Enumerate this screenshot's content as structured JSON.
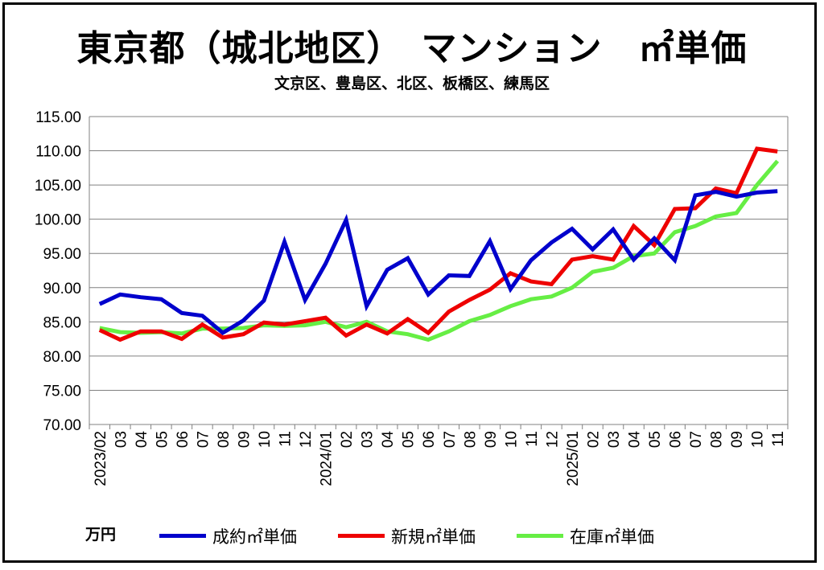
{
  "title": "東京都（城北地区）　マンション　㎡単価",
  "subtitle": "文京区、豊島区、北区、板橋区、練馬区",
  "unit_label": "万円",
  "chart_data": {
    "type": "line",
    "title": "東京都（城北地区）　マンション　㎡単価",
    "subtitle": "文京区、豊島区、北区、板橋区、練馬区",
    "ylabel": "万円",
    "xlabel": "",
    "ylim": [
      70,
      115
    ],
    "yticks": [
      "70.00",
      "75.00",
      "80.00",
      "85.00",
      "90.00",
      "95.00",
      "100.00",
      "105.00",
      "110.00",
      "115.00"
    ],
    "grid": true,
    "legend_position": "bottom",
    "categories": [
      "2023/02",
      "03",
      "04",
      "05",
      "06",
      "07",
      "08",
      "09",
      "10",
      "11",
      "12",
      "2024/01",
      "02",
      "03",
      "04",
      "05",
      "06",
      "07",
      "08",
      "09",
      "10",
      "11",
      "12",
      "2025/01",
      "02",
      "03",
      "04",
      "05",
      "06",
      "07",
      "08",
      "09",
      "10",
      "11"
    ],
    "series": [
      {
        "name": "成約㎡単価",
        "color": "#0000cc",
        "values": [
          87.6,
          89.0,
          88.6,
          88.3,
          86.3,
          85.9,
          83.4,
          85.2,
          88.1,
          96.7,
          88.2,
          93.5,
          99.9,
          87.3,
          92.6,
          94.3,
          89.0,
          91.8,
          91.7,
          96.8,
          89.8,
          94.0,
          96.6,
          98.6,
          95.6,
          98.5,
          94.1,
          97.2,
          94.0,
          103.5,
          104.0,
          103.3,
          103.9,
          104.1
        ]
      },
      {
        "name": "新規㎡単価",
        "color": "#ee0000",
        "values": [
          83.8,
          82.4,
          83.6,
          83.6,
          82.5,
          84.6,
          82.7,
          83.2,
          84.9,
          84.6,
          85.1,
          85.6,
          83.0,
          84.6,
          83.3,
          85.4,
          83.4,
          86.5,
          88.2,
          89.7,
          92.1,
          90.9,
          90.5,
          94.1,
          94.6,
          94.1,
          99.0,
          96.2,
          101.5,
          101.6,
          104.5,
          103.8,
          110.3,
          109.9
        ]
      },
      {
        "name": "在庫㎡単価",
        "color": "#66ee44",
        "values": [
          84.1,
          83.5,
          83.4,
          83.5,
          83.3,
          84.0,
          84.0,
          84.1,
          84.5,
          84.4,
          84.5,
          85.0,
          84.2,
          85.0,
          83.6,
          83.2,
          82.4,
          83.6,
          85.1,
          86.0,
          87.3,
          88.3,
          88.7,
          90.0,
          92.3,
          92.9,
          94.6,
          95.0,
          98.1,
          99.0,
          100.4,
          100.9,
          105.0,
          108.5
        ]
      }
    ]
  }
}
